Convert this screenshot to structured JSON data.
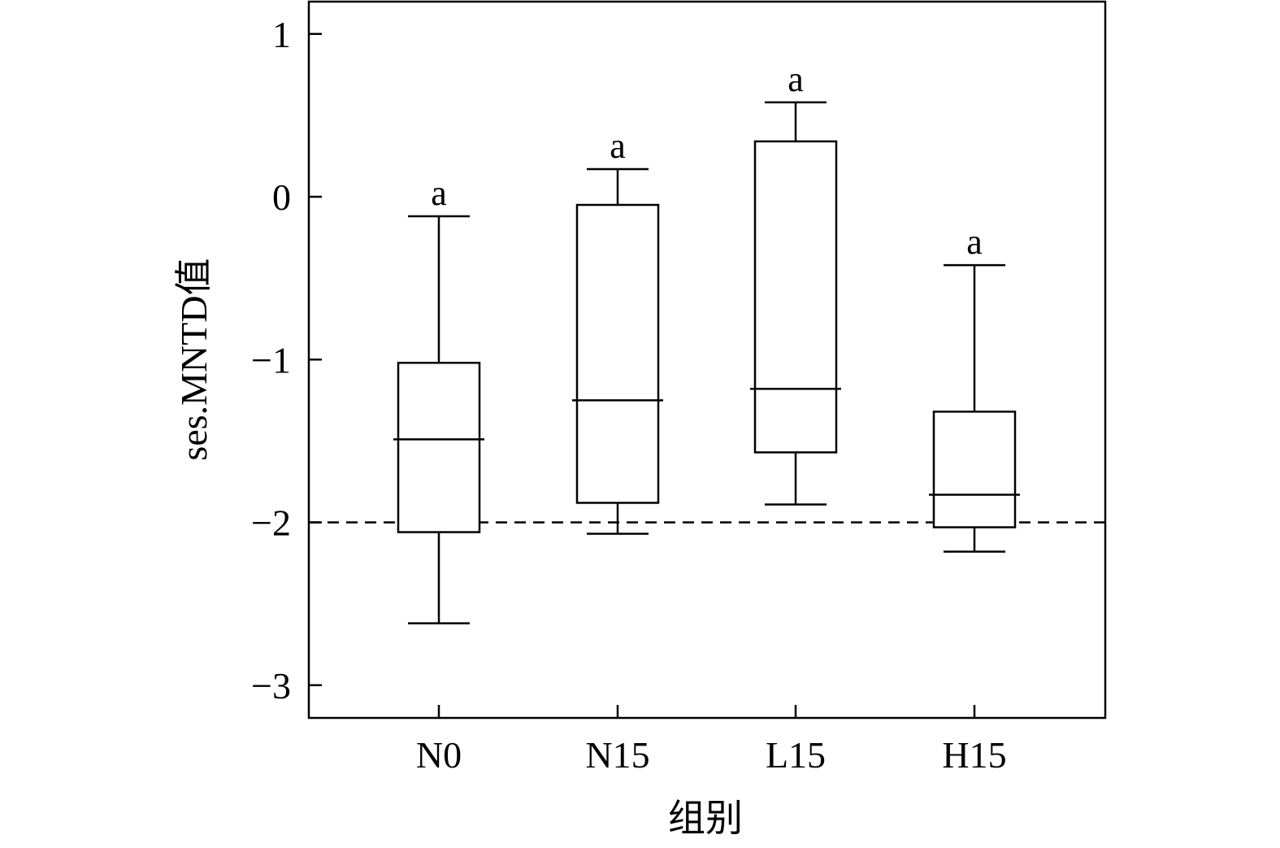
{
  "chart_data": {
    "type": "boxplot",
    "title": "",
    "xlabel": "组别",
    "ylabel": "ses.MNTD值",
    "ylim": [
      -3.2,
      1.2
    ],
    "yticks": [
      1,
      0,
      -1,
      -2,
      -3
    ],
    "ytick_labels": [
      "1",
      "0",
      "−1",
      "−2",
      "−3"
    ],
    "categories": [
      "N0",
      "N15",
      "L15",
      "H15"
    ],
    "boxes": [
      {
        "group": "N0",
        "whisker_low": -2.62,
        "q1": -2.06,
        "median": -1.49,
        "q3": -1.02,
        "whisker_high": -0.12,
        "sig_letter": "a"
      },
      {
        "group": "N15",
        "whisker_low": -2.07,
        "q1": -1.88,
        "median": -1.25,
        "q3": -0.05,
        "whisker_high": 0.17,
        "sig_letter": "a"
      },
      {
        "group": "L15",
        "whisker_low": -1.89,
        "q1": -1.57,
        "median": -1.18,
        "q3": 0.34,
        "whisker_high": 0.58,
        "sig_letter": "a"
      },
      {
        "group": "H15",
        "whisker_low": -2.18,
        "q1": -2.03,
        "median": -1.83,
        "q3": -1.32,
        "whisker_high": -0.42,
        "sig_letter": "a"
      }
    ],
    "reference_line": {
      "y": -2,
      "style": "dashed"
    },
    "grid": false,
    "legend": "none"
  }
}
